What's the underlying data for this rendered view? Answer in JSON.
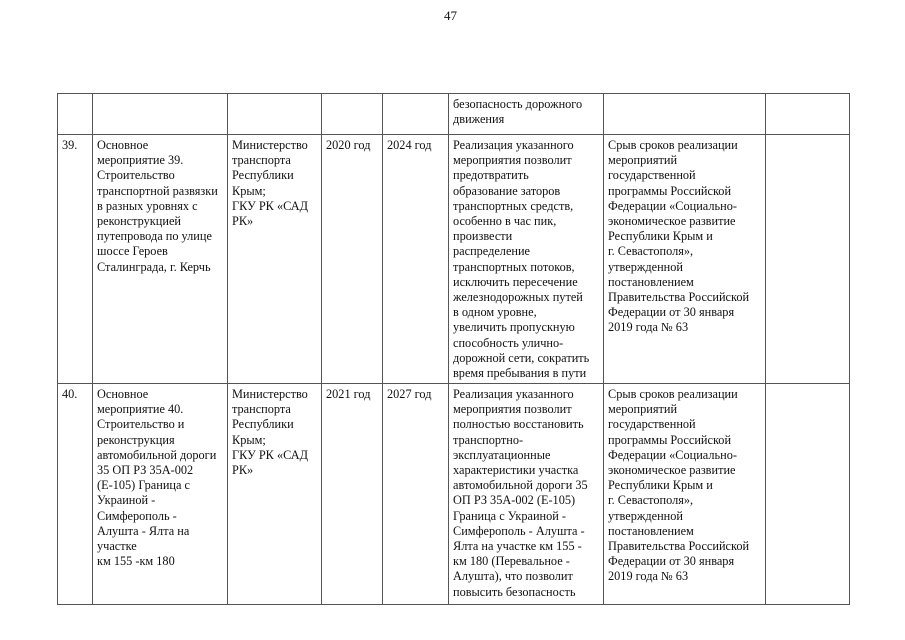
{
  "page_number": "47",
  "rows": [
    {
      "num": "",
      "name": "",
      "executor": "",
      "start": "",
      "end": "",
      "effect": "безопасность дорожного\nдвижения",
      "risk": "",
      "extra": ""
    },
    {
      "num": "39.",
      "name": "Основное\nмероприятие 39.\nСтроительство\nтранспортной развязки\nв разных уровнях с\nреконструкцией\nпутепровода по улице\nшоссе Героев\nСталинграда, г. Керчь",
      "executor": "Министерство\nтранспорта\nРеспублики\nКрым;\nГКУ РК «САД\nРК»",
      "start": "2020 год",
      "end": "2024 год",
      "effect": "Реализация указанного\nмероприятия позволит\nпредотвратить\nобразование заторов\nтранспортных средств,\nособенно в час пик,\nпроизвести\nраспределение\nтранспортных потоков,\nисключить пересечение\nжелезнодорожных путей\nв одном уровне,\nувеличить пропускную\nспособность улично-\nдорожной сети, сократить\nвремя пребывания в пути",
      "risk": "Срыв сроков реализации\nмероприятий\nгосударственной\nпрограммы Российской\nФедерации «Социально-\nэкономическое развитие\nРеспублики Крым и\nг. Севастополя»,\nутвержденной\nпостановлением\nПравительства Российской\nФедерации от 30 января\n2019 года № 63",
      "extra": ""
    },
    {
      "num": "40.",
      "name": "Основное\nмероприятие 40.\nСтроительство и\nреконструкция\nавтомобильной дороги\n35 ОП РЗ 35А-002\n(Е-105) Граница с\nУкраиной -\nСимферополь -\nАлушта - Ялта на\nучастке\nкм 155 -км 180",
      "executor": "Министерство\nтранспорта\nРеспублики\nКрым;\nГКУ РК «САД\nРК»",
      "start": "2021 год",
      "end": "2027 год",
      "effect": "Реализация указанного\nмероприятия позволит\nполностью восстановить\nтранспортно-\nэксплуатационные\nхарактеристики участка\nавтомобильной дороги 35\nОП РЗ 35А-002 (Е-105)\nГраница с Украиной -\nСимферополь - Алушта -\nЯлта на участке км 155 -\nкм 180 (Перевальное -\nАлушта), что позволит\nповысить безопасность",
      "risk": "Срыв сроков реализации\nмероприятий\nгосударственной\nпрограммы Российской\nФедерации «Социально-\nэкономическое развитие\nРеспублики Крым и\nг. Севастополя»,\nутвержденной\nпостановлением\nПравительства Российской\nФедерации от 30 января\n2019 года № 63",
      "extra": ""
    }
  ]
}
